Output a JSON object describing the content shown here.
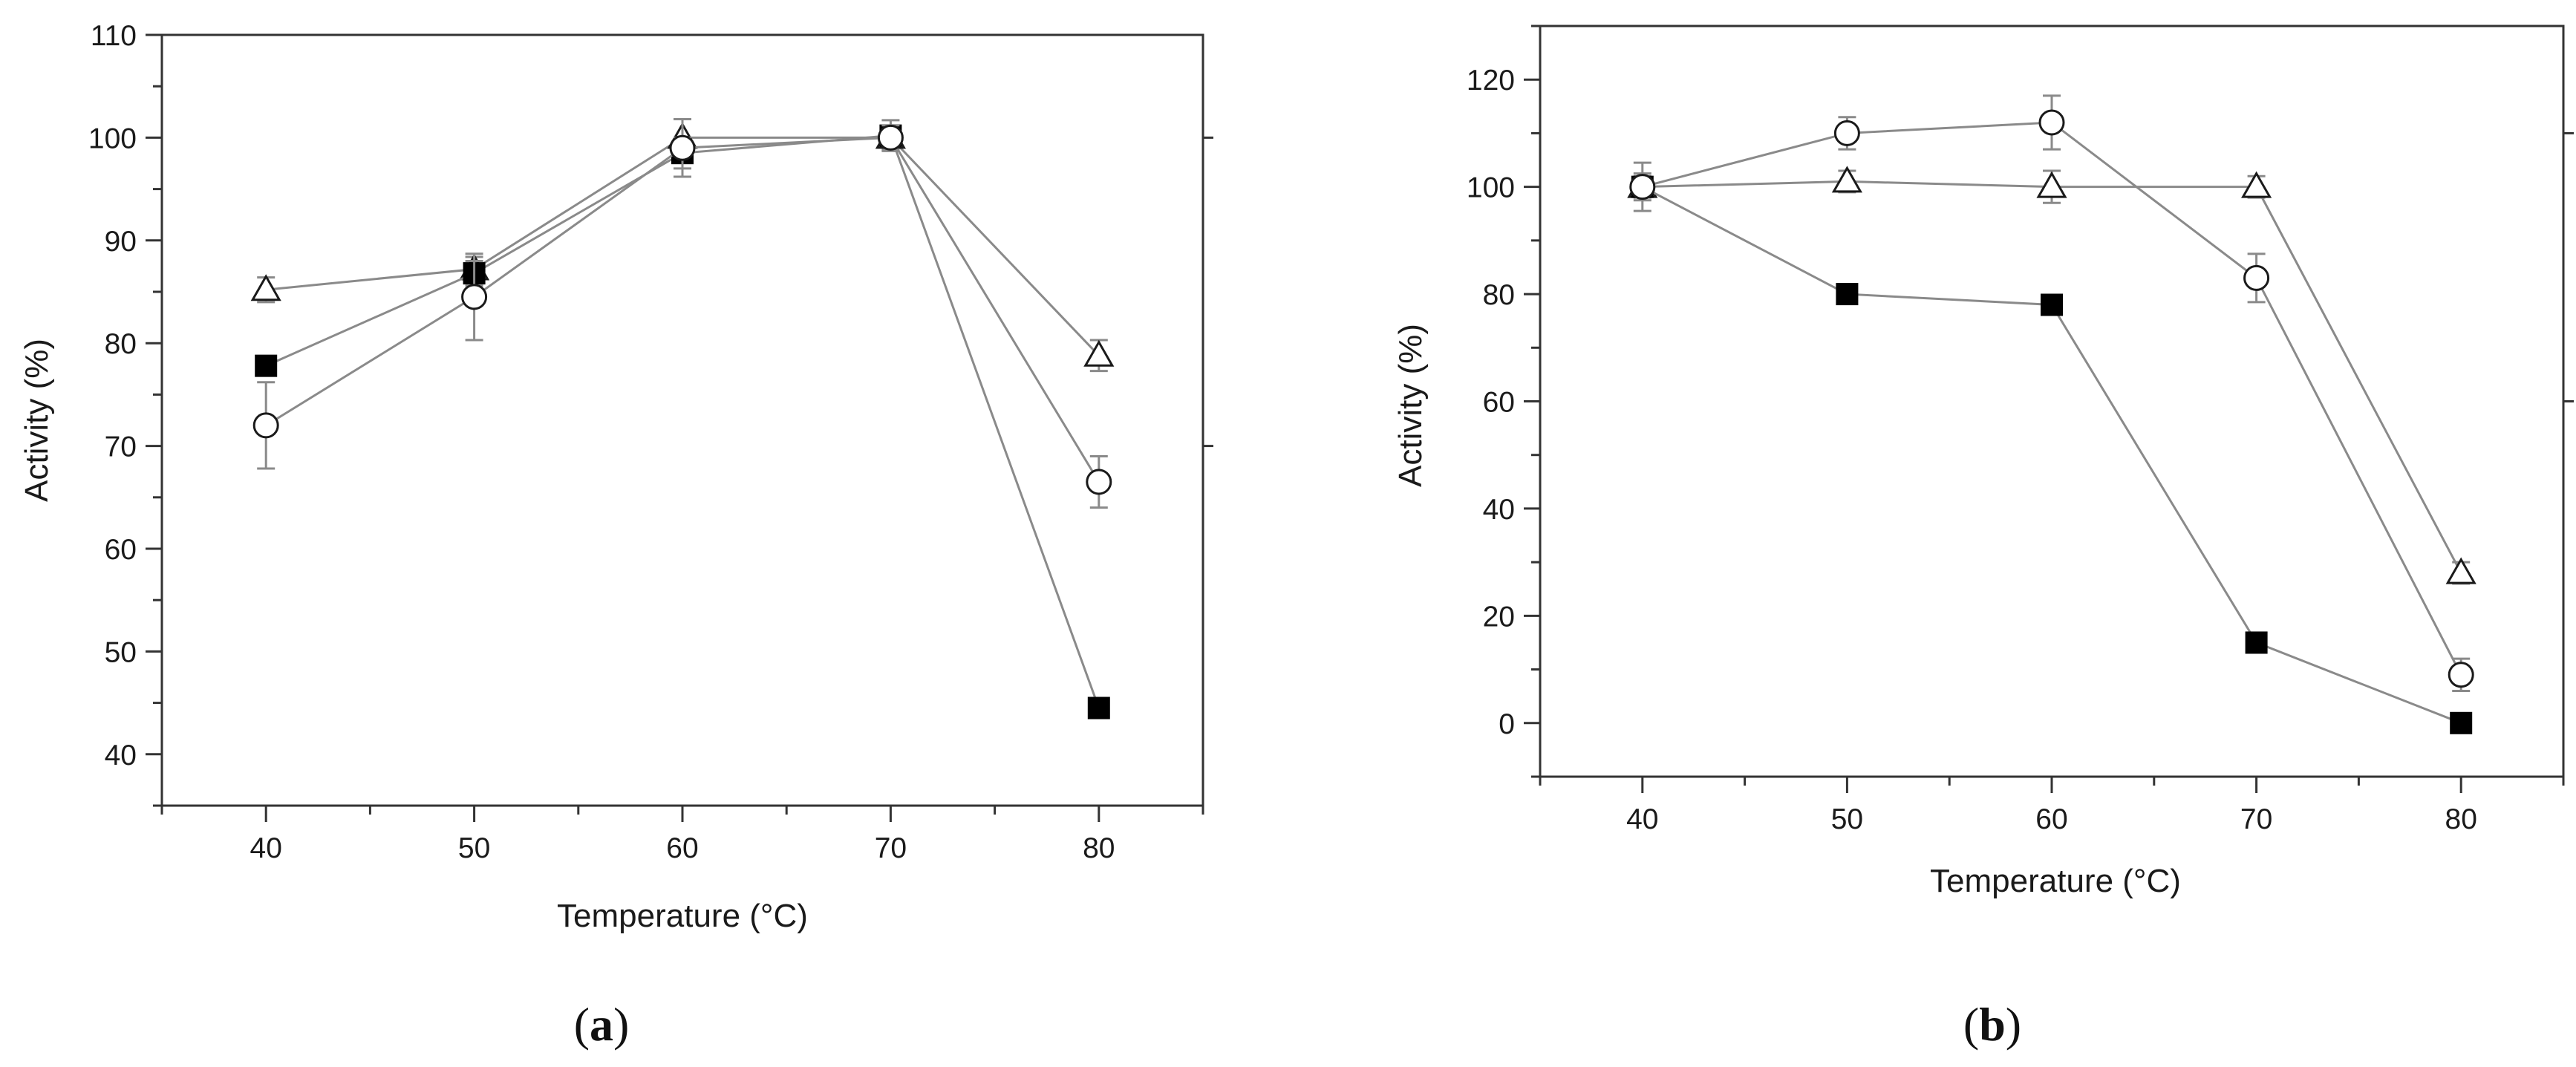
{
  "chart_data": [
    {
      "type": "line",
      "panel_label": "a",
      "xlabel": "Temperature (°C)",
      "ylabel": "Activity (%)",
      "xlim": [
        35,
        85
      ],
      "ylim": [
        35,
        110
      ],
      "xticks": [
        40,
        50,
        60,
        70,
        80
      ],
      "yticks": [
        40,
        50,
        60,
        70,
        80,
        90,
        100,
        110
      ],
      "legend": "none",
      "grid": false,
      "x": [
        40,
        50,
        60,
        70,
        80
      ],
      "series": [
        {
          "marker": "open-triangle",
          "values": [
            85.2,
            87.2,
            100.0,
            100.0,
            78.8
          ],
          "errors": [
            1.2,
            1.2,
            1.8,
            1.0,
            1.5
          ]
        },
        {
          "marker": "filled-square",
          "values": [
            77.8,
            86.8,
            98.5,
            100.2,
            44.5
          ],
          "errors": [
            0.5,
            1.2,
            1.5,
            1.5,
            0.5
          ]
        },
        {
          "marker": "open-circle",
          "values": [
            72.0,
            84.5,
            99.0,
            100.0,
            66.5
          ],
          "errors": [
            4.2,
            4.2,
            2.8,
            1.2,
            2.5
          ]
        }
      ]
    },
    {
      "type": "line",
      "panel_label": "b",
      "xlabel": "Temperature (°C)",
      "ylabel": "Activity (%)",
      "xlim": [
        35,
        85
      ],
      "ylim": [
        -10,
        130
      ],
      "xticks": [
        40,
        50,
        60,
        70,
        80
      ],
      "yticks": [
        0,
        20,
        40,
        60,
        80,
        100,
        120
      ],
      "legend": "none",
      "grid": false,
      "x": [
        40,
        50,
        60,
        70,
        80
      ],
      "series": [
        {
          "marker": "open-triangle",
          "values": [
            100.0,
            101.0,
            100.0,
            100.0,
            28.0
          ],
          "errors": [
            2.0,
            2.0,
            3.0,
            2.0,
            2.0
          ]
        },
        {
          "marker": "filled-square",
          "values": [
            100.0,
            80.0,
            78.0,
            15.0,
            0.0
          ],
          "errors": [
            4.5,
            1.0,
            1.0,
            1.0,
            0.5
          ]
        },
        {
          "marker": "open-circle",
          "values": [
            100.0,
            110.0,
            112.0,
            83.0,
            9.0
          ],
          "errors": [
            2.5,
            3.0,
            5.0,
            4.5,
            3.0
          ]
        }
      ]
    }
  ]
}
